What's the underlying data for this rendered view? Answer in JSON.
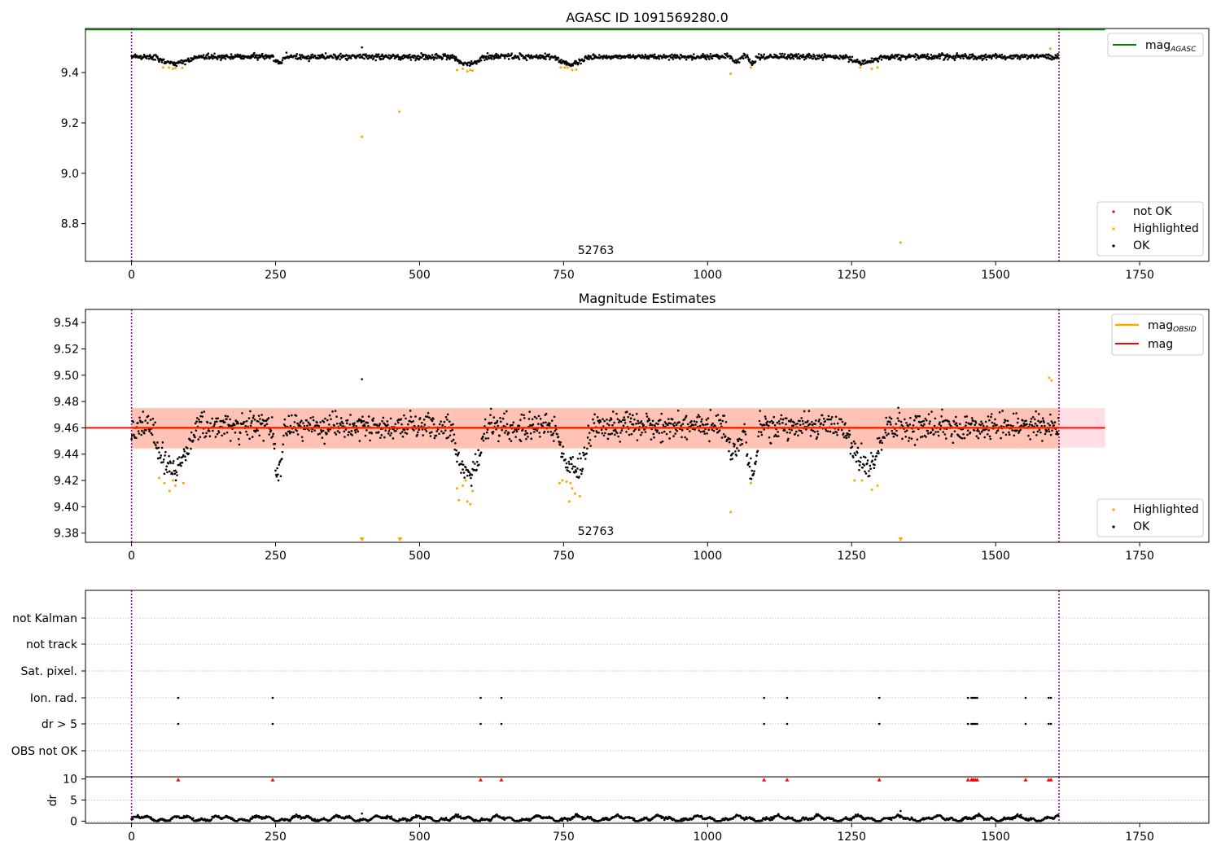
{
  "figure": {
    "background": "#ffffff"
  },
  "colors": {
    "ok": "#000000",
    "highlighted": "#ffa500",
    "not_ok": "#ff0000",
    "mag_agasc": "#008000",
    "mag": "#ff0000",
    "mag_obsid": "#ffa500",
    "band_mag": "#ffb6c1",
    "band_obsid": "#ffa07a",
    "vline": "#800080",
    "grid": "#b0b0b0"
  },
  "marker_label": "52763",
  "chart_data": [
    {
      "type": "scatter",
      "title": "AGASC ID 1091569280.0",
      "xlabel": "",
      "ylabel": "",
      "xlim": [
        -80,
        1870
      ],
      "ylim": [
        8.65,
        9.575
      ],
      "xticks": [
        "0",
        "250",
        "500",
        "750",
        "1000",
        "1250",
        "1500",
        "1750"
      ],
      "yticks": [
        "8.8",
        "9.0",
        "9.2",
        "9.4"
      ],
      "vlines": [
        0,
        1610
      ],
      "hlines": [
        {
          "name": "mag",
          "sub": "AGASC",
          "y": 9.57,
          "color": "green"
        }
      ],
      "legend_top": {
        "placement": "top-right",
        "entries": [
          {
            "mag": "mag",
            "sub": "AGASC"
          }
        ]
      },
      "legend_bottom": {
        "placement": "bottom-right",
        "entries": [
          "not OK",
          "Highlighted",
          "OK"
        ]
      },
      "n_points": 1610,
      "ok_level": 9.463,
      "ok_spread": 0.012,
      "dips": [
        {
          "x": [
            40,
            110
          ],
          "depth": 0.025
        },
        {
          "x": [
            245,
            265
          ],
          "depth": 0.025
        },
        {
          "x": [
            560,
            610
          ],
          "depth": 0.03
        },
        {
          "x": [
            735,
            790
          ],
          "depth": 0.03
        },
        {
          "x": [
            1040,
            1060
          ],
          "depth": 0.02
        },
        {
          "x": [
            1070,
            1085
          ],
          "depth": 0.03
        },
        {
          "x": [
            1240,
            1300
          ],
          "depth": 0.025
        }
      ],
      "highlighted_points": [
        {
          "x": 55,
          "y": 9.42
        },
        {
          "x": 65,
          "y": 9.42
        },
        {
          "x": 72,
          "y": 9.415
        },
        {
          "x": 76,
          "y": 9.418
        },
        {
          "x": 88,
          "y": 9.418
        },
        {
          "x": 400,
          "y": 9.145
        },
        {
          "x": 465,
          "y": 9.245
        },
        {
          "x": 565,
          "y": 9.41
        },
        {
          "x": 575,
          "y": 9.415
        },
        {
          "x": 583,
          "y": 9.405
        },
        {
          "x": 588,
          "y": 9.41
        },
        {
          "x": 592,
          "y": 9.408
        },
        {
          "x": 745,
          "y": 9.42
        },
        {
          "x": 752,
          "y": 9.42
        },
        {
          "x": 757,
          "y": 9.42
        },
        {
          "x": 765,
          "y": 9.41
        },
        {
          "x": 772,
          "y": 9.412
        },
        {
          "x": 1040,
          "y": 9.395
        },
        {
          "x": 1075,
          "y": 9.42
        },
        {
          "x": 1265,
          "y": 9.42
        },
        {
          "x": 1285,
          "y": 9.415
        },
        {
          "x": 1295,
          "y": 9.42
        },
        {
          "x": 1335,
          "y": 8.725
        },
        {
          "x": 1595,
          "y": 9.495
        }
      ],
      "ok_outliers": [
        {
          "x": 400,
          "y": 9.5
        }
      ]
    },
    {
      "type": "scatter",
      "title": "Magnitude Estimates",
      "xlabel": "",
      "ylabel": "",
      "xlim": [
        -80,
        1870
      ],
      "ylim": [
        9.373,
        9.55
      ],
      "xticks": [
        "0",
        "250",
        "500",
        "750",
        "1000",
        "1250",
        "1500",
        "1750"
      ],
      "yticks": [
        "9.38",
        "9.40",
        "9.42",
        "9.44",
        "9.46",
        "9.48",
        "9.50",
        "9.52",
        "9.54"
      ],
      "vlines": [
        0,
        1610
      ],
      "mag": 9.46,
      "mag_band": [
        9.445,
        9.475
      ],
      "mag_obsid": 9.46,
      "mag_obsid_band": [
        9.444,
        9.475
      ],
      "band_x": [
        0,
        1690
      ],
      "legend_top": {
        "placement": "top-right",
        "entries": [
          {
            "mag": "mag",
            "sub": "OBSID"
          },
          {
            "mag": "mag"
          }
        ]
      },
      "legend_bottom": {
        "placement": "bottom-right",
        "entries": [
          "Highlighted",
          "OK"
        ]
      },
      "n_points": 1610,
      "ok_level": 9.461,
      "ok_spread": 0.01,
      "dips": [
        {
          "x": [
            35,
            110
          ],
          "depth": 0.03
        },
        {
          "x": [
            245,
            265
          ],
          "depth": 0.035
        },
        {
          "x": [
            555,
            615
          ],
          "depth": 0.035
        },
        {
          "x": [
            735,
            800
          ],
          "depth": 0.032
        },
        {
          "x": [
            1030,
            1060
          ],
          "depth": 0.02
        },
        {
          "x": [
            1065,
            1090
          ],
          "depth": 0.035
        },
        {
          "x": [
            1240,
            1310
          ],
          "depth": 0.03
        }
      ],
      "highlighted_points": [
        {
          "x": 48,
          "y": 9.422
        },
        {
          "x": 57,
          "y": 9.418
        },
        {
          "x": 66,
          "y": 9.412
        },
        {
          "x": 72,
          "y": 9.42
        },
        {
          "x": 76,
          "y": 9.416
        },
        {
          "x": 90,
          "y": 9.418
        },
        {
          "x": 565,
          "y": 9.414
        },
        {
          "x": 568,
          "y": 9.405
        },
        {
          "x": 575,
          "y": 9.416
        },
        {
          "x": 580,
          "y": 9.42
        },
        {
          "x": 583,
          "y": 9.404
        },
        {
          "x": 588,
          "y": 9.402
        },
        {
          "x": 592,
          "y": 9.412
        },
        {
          "x": 743,
          "y": 9.418
        },
        {
          "x": 748,
          "y": 9.42
        },
        {
          "x": 755,
          "y": 9.419
        },
        {
          "x": 762,
          "y": 9.418
        },
        {
          "x": 765,
          "y": 9.414
        },
        {
          "x": 770,
          "y": 9.41
        },
        {
          "x": 778,
          "y": 9.408
        },
        {
          "x": 760,
          "y": 9.404
        },
        {
          "x": 1040,
          "y": 9.396
        },
        {
          "x": 1075,
          "y": 9.418
        },
        {
          "x": 1255,
          "y": 9.42
        },
        {
          "x": 1268,
          "y": 9.42
        },
        {
          "x": 1285,
          "y": 9.413
        },
        {
          "x": 1295,
          "y": 9.416
        },
        {
          "x": 1593,
          "y": 9.498
        },
        {
          "x": 1597,
          "y": 9.496
        }
      ],
      "clipped_below": [
        400,
        466,
        1335
      ],
      "ok_outliers": [
        {
          "x": 400,
          "y": 9.497
        }
      ]
    },
    {
      "type": "scatter",
      "title": "",
      "xlabel": "",
      "ylabel": "",
      "xlim": [
        -80,
        1870
      ],
      "flag_rows": [
        "not Kalman",
        "not track",
        "Sat. pixel.",
        "Ion. rad.",
        "dr > 5",
        "OBS not OK"
      ],
      "flag_x": [
        81,
        245,
        606,
        642,
        1098,
        1138,
        1298,
        1452,
        1458,
        1460,
        1462,
        1465,
        1468,
        1552,
        1592,
        1596
      ],
      "flags_set": [
        "Ion. rad.",
        "dr > 5"
      ],
      "dr_panel": {
        "ylabel": "dr",
        "ylim": [
          -0.5,
          10.5
        ],
        "yticks": [
          "0",
          "5",
          "10"
        ],
        "xticks": [
          "0",
          "250",
          "500",
          "750",
          "1000",
          "1250",
          "1500",
          "1750"
        ],
        "n_points": 1610,
        "baseline": 0.6,
        "clip_value": 10,
        "clipped_x": [
          81,
          245,
          606,
          642,
          1098,
          1138,
          1298,
          1452,
          1458,
          1460,
          1462,
          1465,
          1468,
          1552,
          1592,
          1596
        ],
        "outliers": [
          {
            "x": 400,
            "y": 1.8
          },
          {
            "x": 1335,
            "y": 2.4
          }
        ]
      }
    }
  ]
}
